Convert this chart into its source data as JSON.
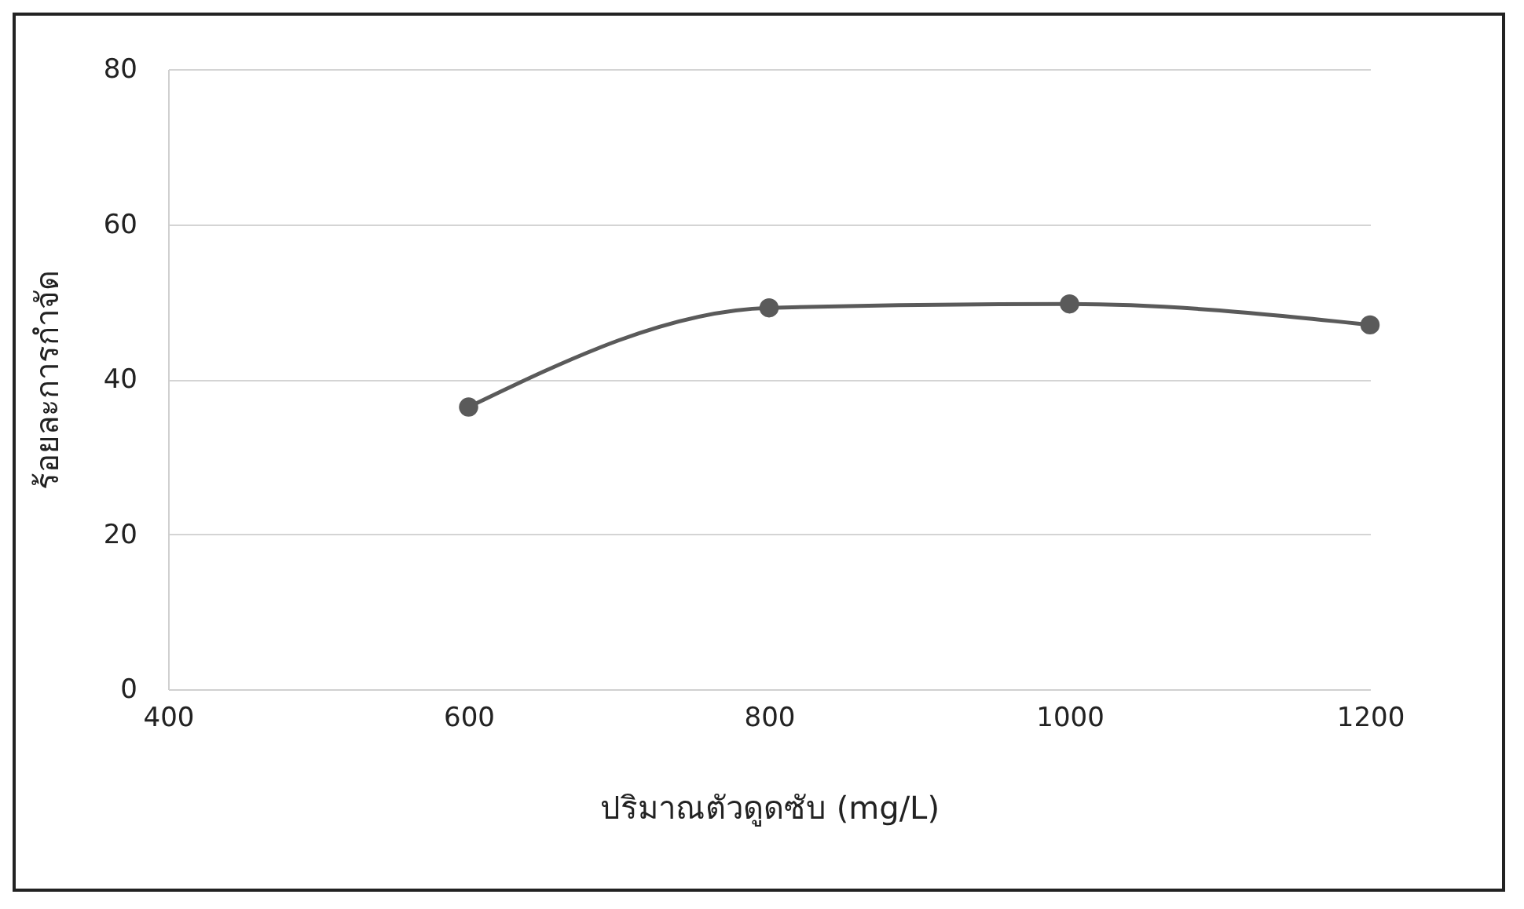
{
  "chart_data": {
    "type": "line",
    "xlabel": "ปริมาณตัวดูดซับ (mg/L)",
    "ylabel": "ร้อยละการกำจัด",
    "x": [
      600,
      800,
      1000,
      1200
    ],
    "series": [
      {
        "color": "#5a5a5a",
        "values": [
          36.4,
          49.2,
          49.7,
          47.0
        ]
      }
    ],
    "xlim": [
      400,
      1200
    ],
    "xticks": [
      400,
      600,
      800,
      1000,
      1200
    ],
    "ylim": [
      0,
      80
    ],
    "yticks": [
      0,
      20,
      40,
      60,
      80
    ],
    "grid": "y",
    "marker": "circle",
    "line_style": "solid",
    "legend": false
  }
}
